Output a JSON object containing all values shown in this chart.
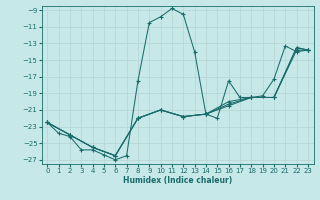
{
  "xlabel": "Humidex (Indice chaleur)",
  "ylabel": "",
  "background_color": "#c6e8e8",
  "grid_color": "#b0d0d0",
  "line_color": "#1a6b6b",
  "xlim": [
    -0.5,
    23.5
  ],
  "ylim": [
    -27.5,
    -8.5
  ],
  "xticks": [
    0,
    1,
    2,
    3,
    4,
    5,
    6,
    7,
    8,
    9,
    10,
    11,
    12,
    13,
    14,
    15,
    16,
    17,
    18,
    19,
    20,
    21,
    22,
    23
  ],
  "yticks": [
    -27,
    -25,
    -23,
    -21,
    -19,
    -17,
    -15,
    -13,
    -11,
    -9
  ],
  "series": [
    [
      [
        0,
        -22.5
      ],
      [
        1,
        -23.8
      ],
      [
        2,
        -24.2
      ],
      [
        3,
        -25.8
      ],
      [
        4,
        -25.8
      ],
      [
        5,
        -26.4
      ],
      [
        6,
        -27.0
      ],
      [
        7,
        -26.5
      ],
      [
        8,
        -17.5
      ],
      [
        9,
        -10.5
      ],
      [
        10,
        -9.8
      ],
      [
        11,
        -8.8
      ],
      [
        12,
        -9.5
      ],
      [
        13,
        -14.0
      ],
      [
        14,
        -21.5
      ],
      [
        15,
        -22.0
      ],
      [
        16,
        -17.5
      ],
      [
        17,
        -19.5
      ],
      [
        18,
        -19.5
      ],
      [
        19,
        -19.3
      ],
      [
        20,
        -17.3
      ],
      [
        21,
        -13.3
      ],
      [
        22,
        -14.0
      ],
      [
        23,
        -13.8
      ]
    ],
    [
      [
        0,
        -22.5
      ],
      [
        2,
        -24.0
      ],
      [
        4,
        -25.5
      ],
      [
        6,
        -26.5
      ],
      [
        8,
        -22.0
      ],
      [
        10,
        -21.0
      ],
      [
        12,
        -21.8
      ],
      [
        14,
        -21.5
      ],
      [
        16,
        -20.5
      ],
      [
        18,
        -19.5
      ],
      [
        20,
        -19.5
      ],
      [
        22,
        -13.8
      ],
      [
        23,
        -13.8
      ]
    ],
    [
      [
        0,
        -22.5
      ],
      [
        2,
        -24.0
      ],
      [
        4,
        -25.5
      ],
      [
        6,
        -26.5
      ],
      [
        8,
        -22.0
      ],
      [
        10,
        -21.0
      ],
      [
        12,
        -21.8
      ],
      [
        14,
        -21.5
      ],
      [
        16,
        -20.3
      ],
      [
        18,
        -19.5
      ],
      [
        20,
        -19.5
      ],
      [
        22,
        -13.5
      ],
      [
        23,
        -13.8
      ]
    ],
    [
      [
        0,
        -22.5
      ],
      [
        2,
        -24.0
      ],
      [
        4,
        -25.5
      ],
      [
        6,
        -26.5
      ],
      [
        8,
        -22.0
      ],
      [
        10,
        -21.0
      ],
      [
        12,
        -21.8
      ],
      [
        14,
        -21.5
      ],
      [
        16,
        -20.0
      ],
      [
        18,
        -19.5
      ],
      [
        20,
        -19.5
      ],
      [
        22,
        -13.5
      ],
      [
        23,
        -13.8
      ]
    ]
  ]
}
